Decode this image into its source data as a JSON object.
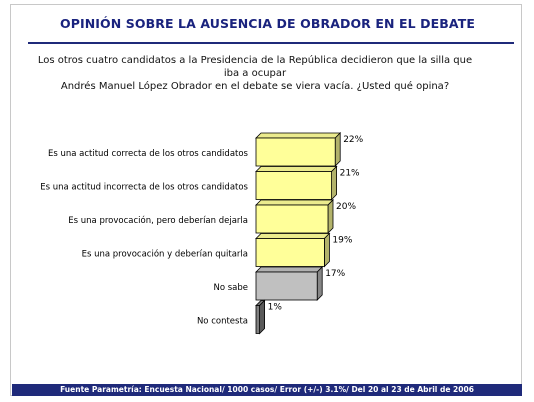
{
  "header": {
    "title": "OPINIÓN SOBRE LA AUSENCIA DE OBRADOR EN EL DEBATE",
    "question_line1": "Los otros cuatro candidatos a la Presidencia de la República decidieron que la silla que iba a ocupar",
    "question_line2": "Andrés Manuel López Obrador en el debate se viera vacía. ¿Usted qué opina?"
  },
  "chart_data": {
    "type": "bar",
    "orientation": "horizontal",
    "style": "3d",
    "categories": [
      "Es una actitud correcta de los otros candidatos",
      "Es una actitud incorrecta de los otros candidatos",
      "Es una provocación, pero deberían dejarla",
      "Es una provocación y deberían quitarla",
      "No sabe",
      "No contesta"
    ],
    "values": [
      22,
      21,
      20,
      19,
      17,
      1
    ],
    "value_labels": [
      "22%",
      "21%",
      "20%",
      "19%",
      "17%",
      "1%"
    ],
    "colors": [
      "#ffff99",
      "#ffff99",
      "#ffff99",
      "#ffff99",
      "#c0c0c0",
      "#808080"
    ],
    "grid": false,
    "legend": "none"
  },
  "footer": {
    "source": "Fuente Parametría: Encuesta Nacional/ 1000 casos/ Error (+/-) 3.1%/ Del 20 al 23 de Abril de 2006"
  }
}
